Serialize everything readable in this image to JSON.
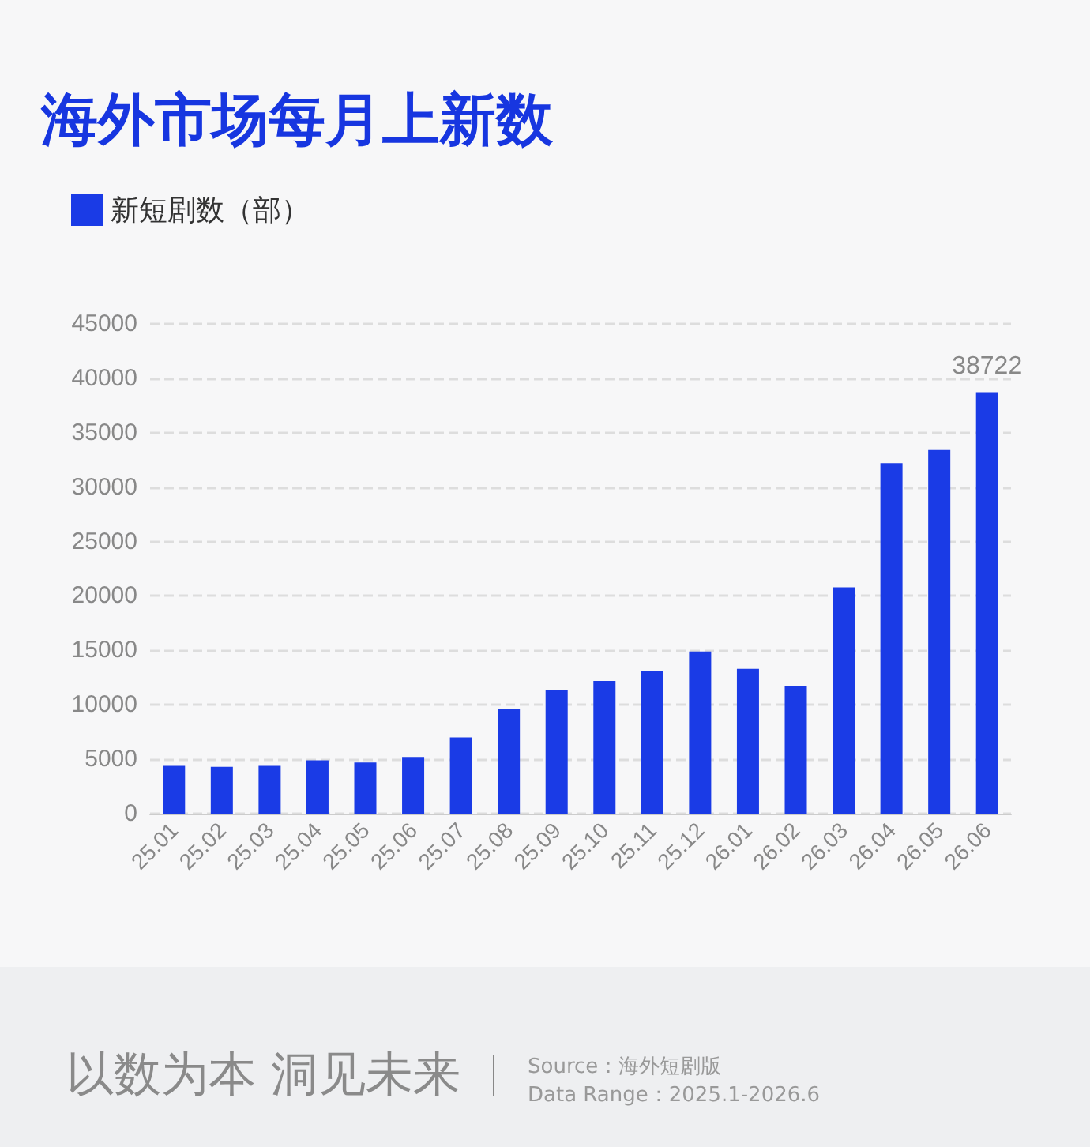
{
  "chart_data": {
    "type": "bar",
    "title": "海外市场每月上新数",
    "categories": [
      "25.01",
      "25.02",
      "25.03",
      "25.04",
      "25.05",
      "25.06",
      "25.07",
      "25.08",
      "25.09",
      "25.10",
      "25.11",
      "25.12",
      "26.01",
      "26.02",
      "26.03",
      "26.04",
      "26.05",
      "26.06"
    ],
    "series": [
      {
        "name": "新短剧数（部）",
        "color": "#1a3be6",
        "values": [
          4400,
          4300,
          4400,
          4900,
          4700,
          5200,
          7000,
          9600,
          11400,
          12200,
          13100,
          14900,
          13300,
          11700,
          20800,
          32200,
          33400,
          38722
        ],
        "value_labels": [
          null,
          null,
          null,
          null,
          null,
          null,
          null,
          null,
          null,
          null,
          null,
          null,
          null,
          null,
          null,
          null,
          null,
          "38722"
        ]
      }
    ],
    "ylim": [
      0,
      45000
    ],
    "yticks": [
      0,
      5000,
      10000,
      15000,
      20000,
      25000,
      30000,
      35000,
      40000,
      45000
    ],
    "grid": "y",
    "legend": "top left",
    "annotations": [
      "以数为本 洞见未来",
      "Source：海外短剧版",
      "Data Range：2025.1-2026.6"
    ]
  }
}
